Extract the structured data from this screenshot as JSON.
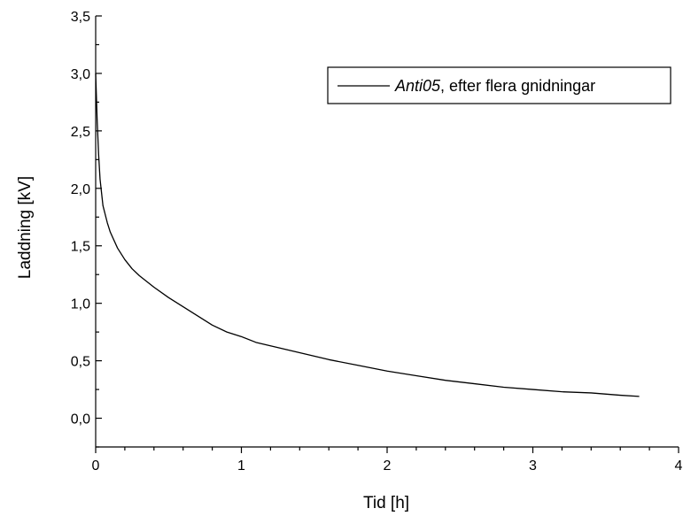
{
  "chart_data": {
    "type": "line",
    "title": "",
    "xlabel": "Tid [h]",
    "ylabel": "Laddning [kV]",
    "xlim": [
      0,
      4
    ],
    "ylim": [
      -0.25,
      3.5
    ],
    "x_ticks": [
      0,
      1,
      2,
      3,
      4
    ],
    "x_tick_labels": [
      "0",
      "1",
      "2",
      "3",
      "4"
    ],
    "y_ticks": [
      0,
      0.5,
      1,
      1.5,
      2,
      2.5,
      3,
      3.5
    ],
    "y_tick_labels": [
      "0,0",
      "0,5",
      "1,0",
      "1,5",
      "2,0",
      "2,5",
      "3,0",
      "3,5"
    ],
    "grid": false,
    "legend_position": "top-right",
    "legend_entry": {
      "name_italic": "Anti05",
      "name_rest": ", efter flera gnidningar"
    },
    "series": [
      {
        "name": "Anti05, efter flera gnidningar",
        "color": "#000000",
        "x": [
          0,
          0.01,
          0.02,
          0.03,
          0.05,
          0.08,
          0.1,
          0.15,
          0.2,
          0.25,
          0.3,
          0.4,
          0.5,
          0.6,
          0.7,
          0.8,
          0.9,
          1.0,
          1.1,
          1.2,
          1.4,
          1.6,
          1.8,
          2.0,
          2.2,
          2.4,
          2.6,
          2.8,
          3.0,
          3.2,
          3.4,
          3.6,
          3.73
        ],
        "y": [
          3.0,
          2.6,
          2.3,
          2.08,
          1.85,
          1.7,
          1.62,
          1.48,
          1.38,
          1.3,
          1.24,
          1.14,
          1.05,
          0.97,
          0.89,
          0.81,
          0.75,
          0.71,
          0.66,
          0.63,
          0.57,
          0.51,
          0.46,
          0.41,
          0.37,
          0.33,
          0.3,
          0.27,
          0.25,
          0.23,
          0.22,
          0.2,
          0.19
        ]
      }
    ]
  }
}
